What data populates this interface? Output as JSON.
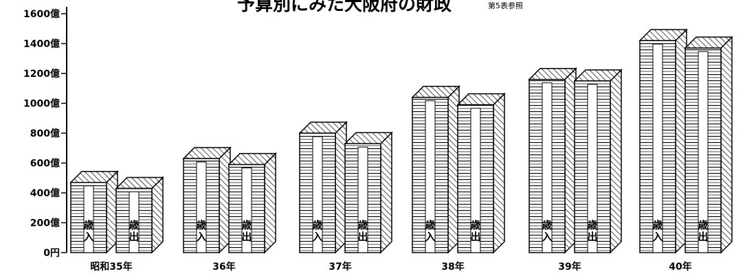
{
  "chart_data": {
    "type": "bar",
    "title": "予算別にみた大阪府の財政",
    "subtitle": "第5表参照",
    "categories": [
      "昭和35年",
      "36年",
      "37年",
      "38年",
      "39年",
      "40年"
    ],
    "series": [
      {
        "name": "歳入",
        "values": [
          470,
          630,
          800,
          1040,
          1160,
          1420
        ]
      },
      {
        "name": "歳出",
        "values": [
          430,
          590,
          730,
          990,
          1150,
          1370
        ]
      }
    ],
    "series_labels": [
      "歳入",
      "歳出"
    ],
    "ylim": [
      0,
      1600
    ],
    "yticks": [
      {
        "value": 0,
        "label": "0円"
      },
      {
        "value": 200,
        "label": "200億"
      },
      {
        "value": 400,
        "label": "400億"
      },
      {
        "value": 600,
        "label": "600億"
      },
      {
        "value": 800,
        "label": "800億"
      },
      {
        "value": 1000,
        "label": "1000億"
      },
      {
        "value": 1200,
        "label": "1200億"
      },
      {
        "value": 1400,
        "label": "1400億"
      },
      {
        "value": 1600,
        "label": "1600億"
      }
    ],
    "grid": false,
    "legend": "none"
  }
}
